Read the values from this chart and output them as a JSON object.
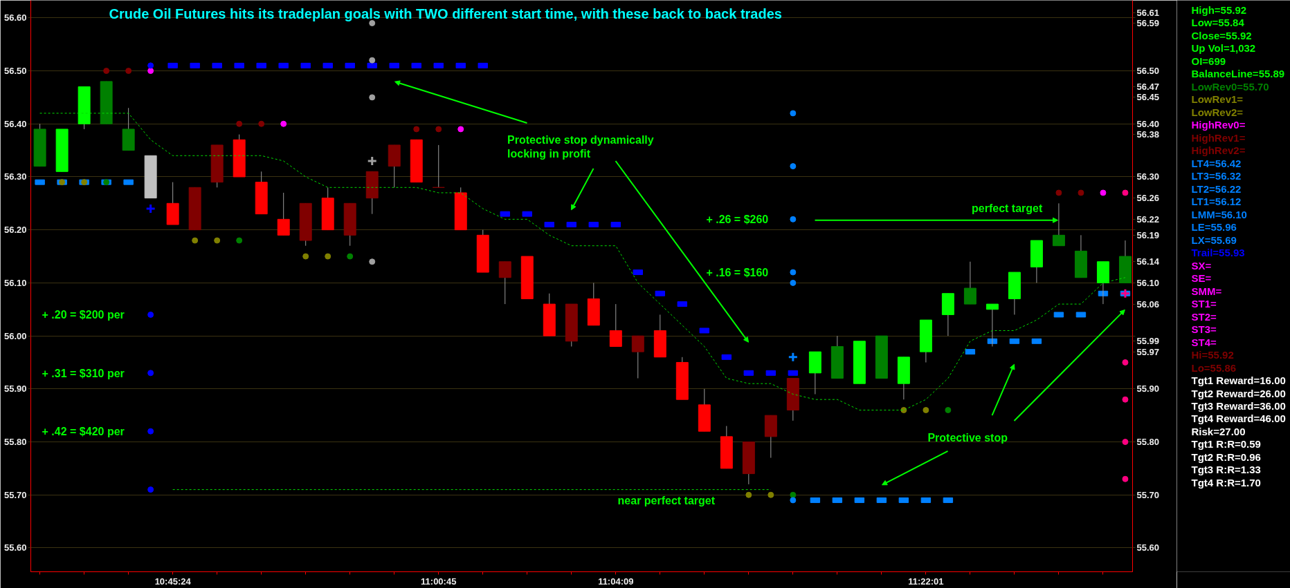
{
  "chart_data": [
    {
      "type": "candlestick",
      "title": "Crude Oil Futures hits its tradeplan goals with TWO different start time, with these back to back trades",
      "categories": [
        null,
        null,
        null,
        null,
        null,
        null,
        "10:45:24",
        null,
        null,
        null,
        null,
        null,
        null,
        null,
        null,
        null,
        null,
        null,
        "11:00:45",
        null,
        null,
        null,
        null,
        null,
        null,
        null,
        "11:04:09",
        null,
        null,
        null,
        null,
        null,
        null,
        null,
        null,
        null,
        null,
        null,
        null,
        null,
        "11:22:01",
        null,
        null,
        null,
        null,
        null,
        null,
        null,
        null,
        null
      ],
      "ohlc": [
        [
          56.39,
          56.4,
          56.32,
          56.32
        ],
        [
          56.31,
          56.39,
          56.31,
          56.39
        ],
        [
          56.4,
          56.47,
          56.39,
          56.47
        ],
        [
          56.48,
          56.48,
          56.4,
          56.4
        ],
        [
          56.39,
          56.43,
          56.35,
          56.35
        ],
        [
          56.34,
          56.34,
          56.26,
          56.26
        ],
        [
          56.25,
          56.29,
          56.21,
          56.21
        ],
        [
          56.2,
          56.28,
          56.2,
          56.28
        ],
        [
          56.29,
          56.36,
          56.28,
          56.36
        ],
        [
          56.37,
          56.38,
          56.3,
          56.3
        ],
        [
          56.29,
          56.31,
          56.23,
          56.23
        ],
        [
          56.22,
          56.27,
          56.19,
          56.19
        ],
        [
          56.18,
          56.25,
          56.17,
          56.25
        ],
        [
          56.26,
          56.28,
          56.2,
          56.2
        ],
        [
          56.19,
          56.25,
          56.17,
          56.25
        ],
        [
          56.26,
          56.31,
          56.23,
          56.31
        ],
        [
          56.32,
          56.36,
          56.28,
          56.36
        ],
        [
          56.37,
          56.37,
          56.29,
          56.29
        ],
        [
          56.28,
          56.36,
          56.28,
          56.28
        ],
        [
          56.27,
          56.28,
          56.2,
          56.2
        ],
        [
          56.19,
          56.2,
          56.12,
          56.12
        ],
        [
          56.11,
          56.14,
          56.06,
          56.14
        ],
        [
          56.15,
          56.15,
          56.07,
          56.07
        ],
        [
          56.06,
          56.08,
          56.0,
          56.0
        ],
        [
          55.99,
          56.06,
          55.98,
          56.06
        ],
        [
          56.07,
          56.1,
          56.02,
          56.02
        ],
        [
          56.01,
          56.06,
          55.98,
          55.98
        ],
        [
          55.97,
          56.0,
          55.92,
          56.0
        ],
        [
          56.01,
          56.04,
          55.96,
          55.96
        ],
        [
          55.95,
          55.96,
          55.88,
          55.88
        ],
        [
          55.87,
          55.9,
          55.82,
          55.82
        ],
        [
          55.81,
          55.83,
          55.75,
          55.75
        ],
        [
          55.74,
          55.8,
          55.72,
          55.8
        ],
        [
          55.81,
          55.85,
          55.77,
          55.85
        ],
        [
          55.86,
          55.92,
          55.84,
          55.92
        ],
        [
          55.93,
          55.97,
          55.89,
          55.97
        ],
        [
          55.98,
          56.0,
          55.92,
          55.92
        ],
        [
          55.91,
          55.99,
          55.91,
          55.99
        ],
        [
          56.0,
          56.0,
          55.92,
          55.92
        ],
        [
          55.91,
          55.96,
          55.88,
          55.96
        ],
        [
          55.97,
          56.03,
          55.95,
          56.03
        ],
        [
          56.04,
          56.08,
          56.0,
          56.08
        ],
        [
          56.09,
          56.14,
          56.06,
          56.06
        ],
        [
          56.05,
          56.06,
          55.98,
          56.06
        ],
        [
          56.07,
          56.12,
          56.04,
          56.12
        ],
        [
          56.13,
          56.18,
          56.1,
          56.18
        ],
        [
          56.19,
          56.25,
          56.17,
          56.17
        ],
        [
          56.16,
          56.19,
          56.11,
          56.11
        ],
        [
          56.1,
          56.14,
          56.06,
          56.14
        ],
        [
          56.15,
          56.18,
          56.1,
          56.1
        ]
      ],
      "colors": [
        "#008000",
        "#00ff00",
        "#00ff00",
        "#008000",
        "#008000",
        "#c0c0c0",
        "#ff0000",
        "#800000",
        "#800000",
        "#ff0000",
        "#ff0000",
        "#ff0000",
        "#800000",
        "#ff0000",
        "#800000",
        "#800000",
        "#800000",
        "#ff0000",
        "#800000",
        "#ff0000",
        "#ff0000",
        "#800000",
        "#ff0000",
        "#ff0000",
        "#800000",
        "#ff0000",
        "#ff0000",
        "#800000",
        "#ff0000",
        "#ff0000",
        "#ff0000",
        "#ff0000",
        "#800000",
        "#800000",
        "#800000",
        "#00ff00",
        "#008000",
        "#00ff00",
        "#008000",
        "#00ff00",
        "#00ff00",
        "#00ff00",
        "#008000",
        "#00ff00",
        "#00ff00",
        "#00ff00",
        "#008000",
        "#008000",
        "#00ff00",
        "#008000"
      ],
      "series": [
        {
          "type": "line",
          "color": "#00dd00",
          "line_style": "dashed",
          "values": [
            56.42,
            56.42,
            56.42,
            56.42,
            56.42,
            56.37,
            56.34,
            56.34,
            56.34,
            56.34,
            56.34,
            56.33,
            56.3,
            56.28,
            56.28,
            56.28,
            56.28,
            56.28,
            56.27,
            56.27,
            56.24,
            56.22,
            56.22,
            56.19,
            56.17,
            56.17,
            56.17,
            56.1,
            56.06,
            56.02,
            55.98,
            55.92,
            55.91,
            55.91,
            55.89,
            55.88,
            55.88,
            55.86,
            55.86,
            55.86,
            55.88,
            55.92,
            55.99,
            56.01,
            56.01,
            56.03,
            56.06,
            56.06,
            56.1,
            56.11
          ]
        },
        {
          "type": "line",
          "color": "#00dd00",
          "line_style": "dashed",
          "values": [
            null,
            null,
            null,
            null,
            null,
            null,
            55.71,
            55.71,
            55.71,
            55.71,
            55.71,
            55.71,
            55.71,
            55.71,
            55.71,
            55.71,
            55.71,
            55.71,
            55.71,
            55.71,
            55.71,
            55.71,
            55.71,
            55.71,
            55.71,
            55.71,
            55.71,
            55.71,
            55.71,
            55.71,
            55.71,
            55.71,
            55.71,
            55.71,
            null,
            null,
            null,
            null,
            null,
            null,
            null,
            null,
            null,
            null,
            null,
            null,
            null,
            null,
            null,
            null
          ]
        },
        {
          "type": "scatter",
          "marker": "square",
          "color": "#0000ff",
          "values": [
            null,
            null,
            null,
            null,
            null,
            null,
            56.51,
            56.51,
            56.51,
            56.51,
            56.51,
            56.51,
            56.51,
            56.51,
            56.51,
            56.51,
            56.51,
            56.51,
            56.51,
            56.51,
            56.51,
            56.23,
            56.23,
            56.21,
            56.21,
            56.21,
            56.21,
            56.12,
            56.08,
            56.06,
            56.01,
            55.96,
            55.93,
            55.93,
            55.93,
            null,
            null,
            null,
            null,
            null,
            null,
            null,
            null,
            null,
            null,
            null,
            null,
            null,
            null,
            null
          ]
        },
        {
          "type": "scatter",
          "marker": "square",
          "color": "#0080ff",
          "values": [
            56.29,
            56.29,
            56.29,
            56.29,
            56.29,
            null,
            null,
            null,
            null,
            null,
            null,
            null,
            null,
            null,
            null,
            null,
            null,
            null,
            null,
            null,
            null,
            null,
            null,
            null,
            null,
            null,
            null,
            null,
            null,
            null,
            null,
            null,
            null,
            null,
            null,
            55.69,
            55.69,
            55.69,
            55.69,
            55.69,
            55.69,
            55.69,
            55.97,
            55.99,
            55.99,
            55.99,
            56.04,
            56.04,
            56.08,
            56.08
          ]
        },
        {
          "type": "scatter",
          "marker": "circle",
          "values": [
            null,
            null,
            null,
            56.5,
            56.5,
            56.5,
            null,
            null,
            null,
            56.4,
            56.4,
            56.4,
            null,
            null,
            null,
            null,
            null,
            56.39,
            56.39,
            56.39,
            null,
            null,
            null,
            null,
            null,
            null,
            null,
            null,
            null,
            null,
            null,
            null,
            null,
            null,
            null,
            null,
            null,
            null,
            null,
            null,
            null,
            null,
            null,
            null,
            null,
            null,
            56.27,
            56.27,
            56.27,
            56.27
          ],
          "colors": [
            null,
            null,
            null,
            "#800000",
            "#800000",
            "#ff00ff",
            null,
            null,
            null,
            "#800000",
            "#800000",
            "#ff00ff",
            null,
            null,
            null,
            null,
            null,
            "#800000",
            "#800000",
            "#ff00ff",
            null,
            null,
            null,
            null,
            null,
            null,
            null,
            null,
            null,
            null,
            null,
            null,
            null,
            null,
            null,
            null,
            null,
            null,
            null,
            null,
            null,
            null,
            null,
            null,
            null,
            null,
            "#800000",
            "#800000",
            "#ff00ff",
            "#ff0080"
          ]
        },
        {
          "type": "scatter",
          "marker": "circle",
          "values": [
            null,
            56.29,
            56.29,
            56.29,
            null,
            null,
            null,
            56.18,
            56.18,
            56.18,
            null,
            null,
            56.15,
            56.15,
            56.15,
            null,
            null,
            null,
            null,
            null,
            null,
            null,
            null,
            null,
            null,
            null,
            null,
            null,
            null,
            null,
            null,
            null,
            55.7,
            55.7,
            55.7,
            null,
            null,
            null,
            null,
            55.86,
            55.86,
            55.86,
            null,
            null,
            null,
            null,
            null,
            null,
            null,
            null
          ],
          "colors": [
            null,
            "#808000",
            "#808000",
            "#008000",
            null,
            null,
            null,
            "#808000",
            "#808000",
            "#008000",
            null,
            null,
            "#808000",
            "#808000",
            "#008000",
            null,
            null,
            null,
            null,
            null,
            null,
            null,
            null,
            null,
            null,
            null,
            null,
            null,
            null,
            null,
            null,
            null,
            "#808000",
            "#808000",
            "#008000",
            null,
            null,
            null,
            null,
            "#808000",
            "#808000",
            "#008000",
            null,
            null,
            null,
            null,
            null,
            null,
            null,
            null
          ]
        },
        {
          "type": "scatter",
          "marker": "circle",
          "values": [
            null,
            null,
            null,
            null,
            null,
            56.51,
            null,
            null,
            null,
            null,
            null,
            null,
            null,
            null,
            null,
            56.59,
            null,
            null,
            null,
            null,
            null,
            null,
            null,
            null,
            null,
            null,
            null,
            null,
            null,
            null,
            null,
            null,
            null,
            null,
            56.42,
            null,
            null,
            null,
            null,
            null,
            null,
            null,
            null,
            null,
            null,
            null,
            null,
            null,
            null,
            55.95
          ],
          "colors": [
            null,
            null,
            null,
            null,
            null,
            "#0000ff",
            null,
            null,
            null,
            null,
            null,
            null,
            null,
            null,
            null,
            "#a0a0a0",
            null,
            null,
            null,
            null,
            null,
            null,
            null,
            null,
            null,
            null,
            null,
            null,
            null,
            null,
            null,
            null,
            null,
            null,
            "#0080ff",
            null,
            null,
            null,
            null,
            null,
            null,
            null,
            null,
            null,
            null,
            null,
            null,
            null,
            null,
            "#ff0080"
          ]
        },
        {
          "type": "scatter",
          "marker": "circle",
          "values": [
            null,
            null,
            null,
            null,
            null,
            56.04,
            null,
            null,
            null,
            null,
            null,
            null,
            null,
            null,
            null,
            56.52,
            null,
            null,
            null,
            null,
            null,
            null,
            null,
            null,
            null,
            null,
            null,
            null,
            null,
            null,
            null,
            null,
            null,
            null,
            56.32,
            null,
            null,
            null,
            null,
            null,
            null,
            null,
            null,
            null,
            null,
            null,
            null,
            null,
            null,
            55.88
          ],
          "colors": [
            null,
            null,
            null,
            null,
            null,
            "#0000ff",
            null,
            null,
            null,
            null,
            null,
            null,
            null,
            null,
            null,
            "#a0a0a0",
            null,
            null,
            null,
            null,
            null,
            null,
            null,
            null,
            null,
            null,
            null,
            null,
            null,
            null,
            null,
            null,
            null,
            null,
            "#0080ff",
            null,
            null,
            null,
            null,
            null,
            null,
            null,
            null,
            null,
            null,
            null,
            null,
            null,
            null,
            "#ff0080"
          ]
        },
        {
          "type": "scatter",
          "marker": "circle",
          "values": [
            null,
            null,
            null,
            null,
            null,
            55.93,
            null,
            null,
            null,
            null,
            null,
            null,
            null,
            null,
            null,
            56.45,
            null,
            null,
            null,
            null,
            null,
            null,
            null,
            null,
            null,
            null,
            null,
            null,
            null,
            null,
            null,
            null,
            null,
            null,
            56.22,
            null,
            null,
            null,
            null,
            null,
            null,
            null,
            null,
            null,
            null,
            null,
            null,
            null,
            null,
            55.8
          ],
          "colors": [
            null,
            null,
            null,
            null,
            null,
            "#0000ff",
            null,
            null,
            null,
            null,
            null,
            null,
            null,
            null,
            null,
            "#a0a0a0",
            null,
            null,
            null,
            null,
            null,
            null,
            null,
            null,
            null,
            null,
            null,
            null,
            null,
            null,
            null,
            null,
            null,
            null,
            "#0080ff",
            null,
            null,
            null,
            null,
            null,
            null,
            null,
            null,
            null,
            null,
            null,
            null,
            null,
            null,
            "#ff0080"
          ]
        },
        {
          "type": "scatter",
          "marker": "circle",
          "values": [
            null,
            null,
            null,
            null,
            null,
            55.82,
            null,
            null,
            null,
            null,
            null,
            null,
            null,
            null,
            null,
            56.14,
            null,
            null,
            null,
            null,
            null,
            null,
            null,
            null,
            null,
            null,
            null,
            null,
            null,
            null,
            null,
            null,
            null,
            null,
            56.12,
            null,
            null,
            null,
            null,
            null,
            null,
            null,
            null,
            null,
            null,
            null,
            null,
            null,
            null,
            55.73
          ],
          "colors": [
            null,
            null,
            null,
            null,
            null,
            "#0000ff",
            null,
            null,
            null,
            null,
            null,
            null,
            null,
            null,
            null,
            "#a0a0a0",
            null,
            null,
            null,
            null,
            null,
            null,
            null,
            null,
            null,
            null,
            null,
            null,
            null,
            null,
            null,
            null,
            null,
            null,
            "#0080ff",
            null,
            null,
            null,
            null,
            null,
            null,
            null,
            null,
            null,
            null,
            null,
            null,
            null,
            null,
            "#ff0080"
          ]
        },
        {
          "type": "scatter",
          "marker": "circle",
          "values": [
            null,
            null,
            null,
            null,
            null,
            55.71,
            null,
            null,
            null,
            null,
            null,
            null,
            null,
            null,
            null,
            null,
            null,
            null,
            null,
            null,
            null,
            null,
            null,
            null,
            null,
            null,
            null,
            null,
            null,
            null,
            null,
            null,
            null,
            null,
            56.1,
            null,
            null,
            null,
            null,
            null,
            null,
            null,
            null,
            null,
            null,
            null,
            null,
            null,
            null,
            null
          ],
          "colors": [
            null,
            null,
            null,
            null,
            null,
            "#0000ff",
            null,
            null,
            null,
            null,
            null,
            null,
            null,
            null,
            null,
            null,
            null,
            null,
            null,
            null,
            null,
            null,
            null,
            null,
            null,
            null,
            null,
            null,
            null,
            null,
            null,
            null,
            null,
            null,
            "#0080ff",
            null,
            null,
            null,
            null,
            null,
            null,
            null,
            null,
            null,
            null,
            null,
            null,
            null,
            null,
            null
          ]
        },
        {
          "type": "scatter",
          "marker": "circle",
          "color": "#0080ff",
          "values": [
            null,
            null,
            null,
            null,
            null,
            null,
            null,
            null,
            null,
            null,
            null,
            null,
            null,
            null,
            null,
            null,
            null,
            null,
            null,
            null,
            null,
            null,
            null,
            null,
            null,
            null,
            null,
            null,
            null,
            null,
            null,
            null,
            null,
            null,
            55.69,
            null,
            null,
            null,
            null,
            null,
            null,
            null,
            null,
            null,
            null,
            null,
            null,
            null,
            null,
            null
          ]
        },
        {
          "type": "scatter",
          "marker": "cross",
          "values": [
            null,
            null,
            null,
            null,
            null,
            56.24,
            null,
            null,
            null,
            null,
            null,
            null,
            null,
            null,
            null,
            56.33,
            null,
            null,
            null,
            null,
            null,
            null,
            null,
            null,
            null,
            null,
            null,
            null,
            null,
            null,
            null,
            null,
            null,
            null,
            55.96,
            null,
            null,
            null,
            null,
            null,
            null,
            null,
            null,
            null,
            null,
            null,
            null,
            null,
            null,
            56.08
          ],
          "colors": [
            null,
            null,
            null,
            null,
            null,
            "#0000ff",
            null,
            null,
            null,
            null,
            null,
            null,
            null,
            null,
            null,
            "#a0a0a0",
            null,
            null,
            null,
            null,
            null,
            null,
            null,
            null,
            null,
            null,
            null,
            null,
            null,
            null,
            null,
            null,
            null,
            null,
            "#0080ff",
            null,
            null,
            null,
            null,
            null,
            null,
            null,
            null,
            null,
            null,
            null,
            null,
            null,
            null,
            "#ff0080"
          ]
        }
      ],
      "ylim": [
        55.555,
        56.633
      ],
      "yticks": [
        {
          "value": 55.6,
          "label": "55.60"
        },
        {
          "value": 55.7,
          "label": "55.70"
        },
        {
          "value": 55.8,
          "label": "55.80"
        },
        {
          "value": 55.9,
          "label": "55.90"
        },
        {
          "value": 56.0,
          "label": "56.00"
        },
        {
          "value": 56.1,
          "label": "56.10"
        },
        {
          "value": 56.2,
          "label": "56.20"
        },
        {
          "value": 56.3,
          "label": "56.30"
        },
        {
          "value": 56.4,
          "label": "56.40"
        },
        {
          "value": 56.5,
          "label": "56.50"
        },
        {
          "value": 56.6,
          "label": "56.60"
        }
      ],
      "y2lim": [
        55.555,
        56.633
      ],
      "y2ticks": [
        {
          "value": 55.6,
          "label": "55.60"
        },
        {
          "value": 55.7,
          "label": "55.70"
        },
        {
          "value": 55.8,
          "label": "55.80"
        },
        {
          "value": 55.9,
          "label": "55.90"
        },
        {
          "value": 55.97,
          "label": "55.97"
        },
        {
          "value": 55.99,
          "label": "55.99"
        },
        {
          "value": 56.0,
          "label": null
        },
        {
          "value": 56.06,
          "label": "56.06"
        },
        {
          "value": 56.1,
          "label": "56.10"
        },
        {
          "value": 56.14,
          "label": "56.14"
        },
        {
          "value": 56.19,
          "label": "56.19"
        },
        {
          "value": 56.2,
          "label": null
        },
        {
          "value": 56.22,
          "label": "56.22"
        },
        {
          "value": 56.26,
          "label": "56.26"
        },
        {
          "value": 56.3,
          "label": "56.30"
        },
        {
          "value": 56.38,
          "label": "56.38"
        },
        {
          "value": 56.4,
          "label": "56.40"
        },
        {
          "value": 56.45,
          "label": "56.45"
        },
        {
          "value": 56.47,
          "label": "56.47"
        },
        {
          "value": 56.5,
          "label": "56.50"
        },
        {
          "value": 56.59,
          "label": "56.59"
        },
        {
          "value": 56.6,
          "label": null
        },
        {
          "value": 56.61,
          "label": "56.61"
        }
      ],
      "grid": "y",
      "annotations": [
        "+ .20 = $200 per",
        "+ .31 = $310 per",
        "+ .42 = $420 per",
        "Protective stop dynamically\nlocking in profit",
        "+ .26 = $260",
        "+ .16 = $160",
        "near perfect target",
        "perfect target",
        "Protective stop"
      ]
    },
    {
      "type": "other",
      "annotations": [
        "High=55.92",
        "Low=55.84",
        "Close=55.92",
        "Up Vol=1,032",
        "OI=699",
        "BalanceLine=55.89",
        "LowRev0=55.70",
        "LowRev1=",
        "LowRev2=",
        "HighRev0=",
        "HighRev1=",
        "HighRev2=",
        "LT4=56.42",
        "LT3=56.32",
        "LT2=56.22",
        "LT1=56.12",
        "LMM=56.10",
        "LE=55.96",
        "LX=55.69",
        "Trail=55.93",
        "SX=",
        "SE=",
        "SMM=",
        "ST1=",
        "ST2=",
        "ST3=",
        "ST4=",
        "Hi=55.92",
        "Lo=55.86",
        "Tgt1 Reward=16.00",
        "Tgt2 Reward=26.00",
        "Tgt3 Reward=36.00",
        "Tgt4 Reward=46.00",
        "Risk=27.00",
        "Tgt1 R:R=0.59",
        "Tgt2 R:R=0.96",
        "Tgt3 R:R=1.33",
        "Tgt4 R:R=1.70"
      ],
      "colors": [
        "#00ff00",
        "#00ff00",
        "#00ff00",
        "#00ff00",
        "#00ff00",
        "#00ff00",
        "#008000",
        "#808000",
        "#808000",
        "#ff00ff",
        "#800000",
        "#800000",
        "#0080ff",
        "#0080ff",
        "#0080ff",
        "#0080ff",
        "#0080ff",
        "#0080ff",
        "#0080ff",
        "#0000ff",
        "#ff00ff",
        "#ff00ff",
        "#ff00ff",
        "#ff00ff",
        "#ff00ff",
        "#ff00ff",
        "#ff00ff",
        "#800000",
        "#800000",
        "#ffffff",
        "#ffffff",
        "#ffffff",
        "#ffffff",
        "#ffffff",
        "#ffffff",
        "#ffffff",
        "#ffffff",
        "#ffffff"
      ]
    }
  ]
}
